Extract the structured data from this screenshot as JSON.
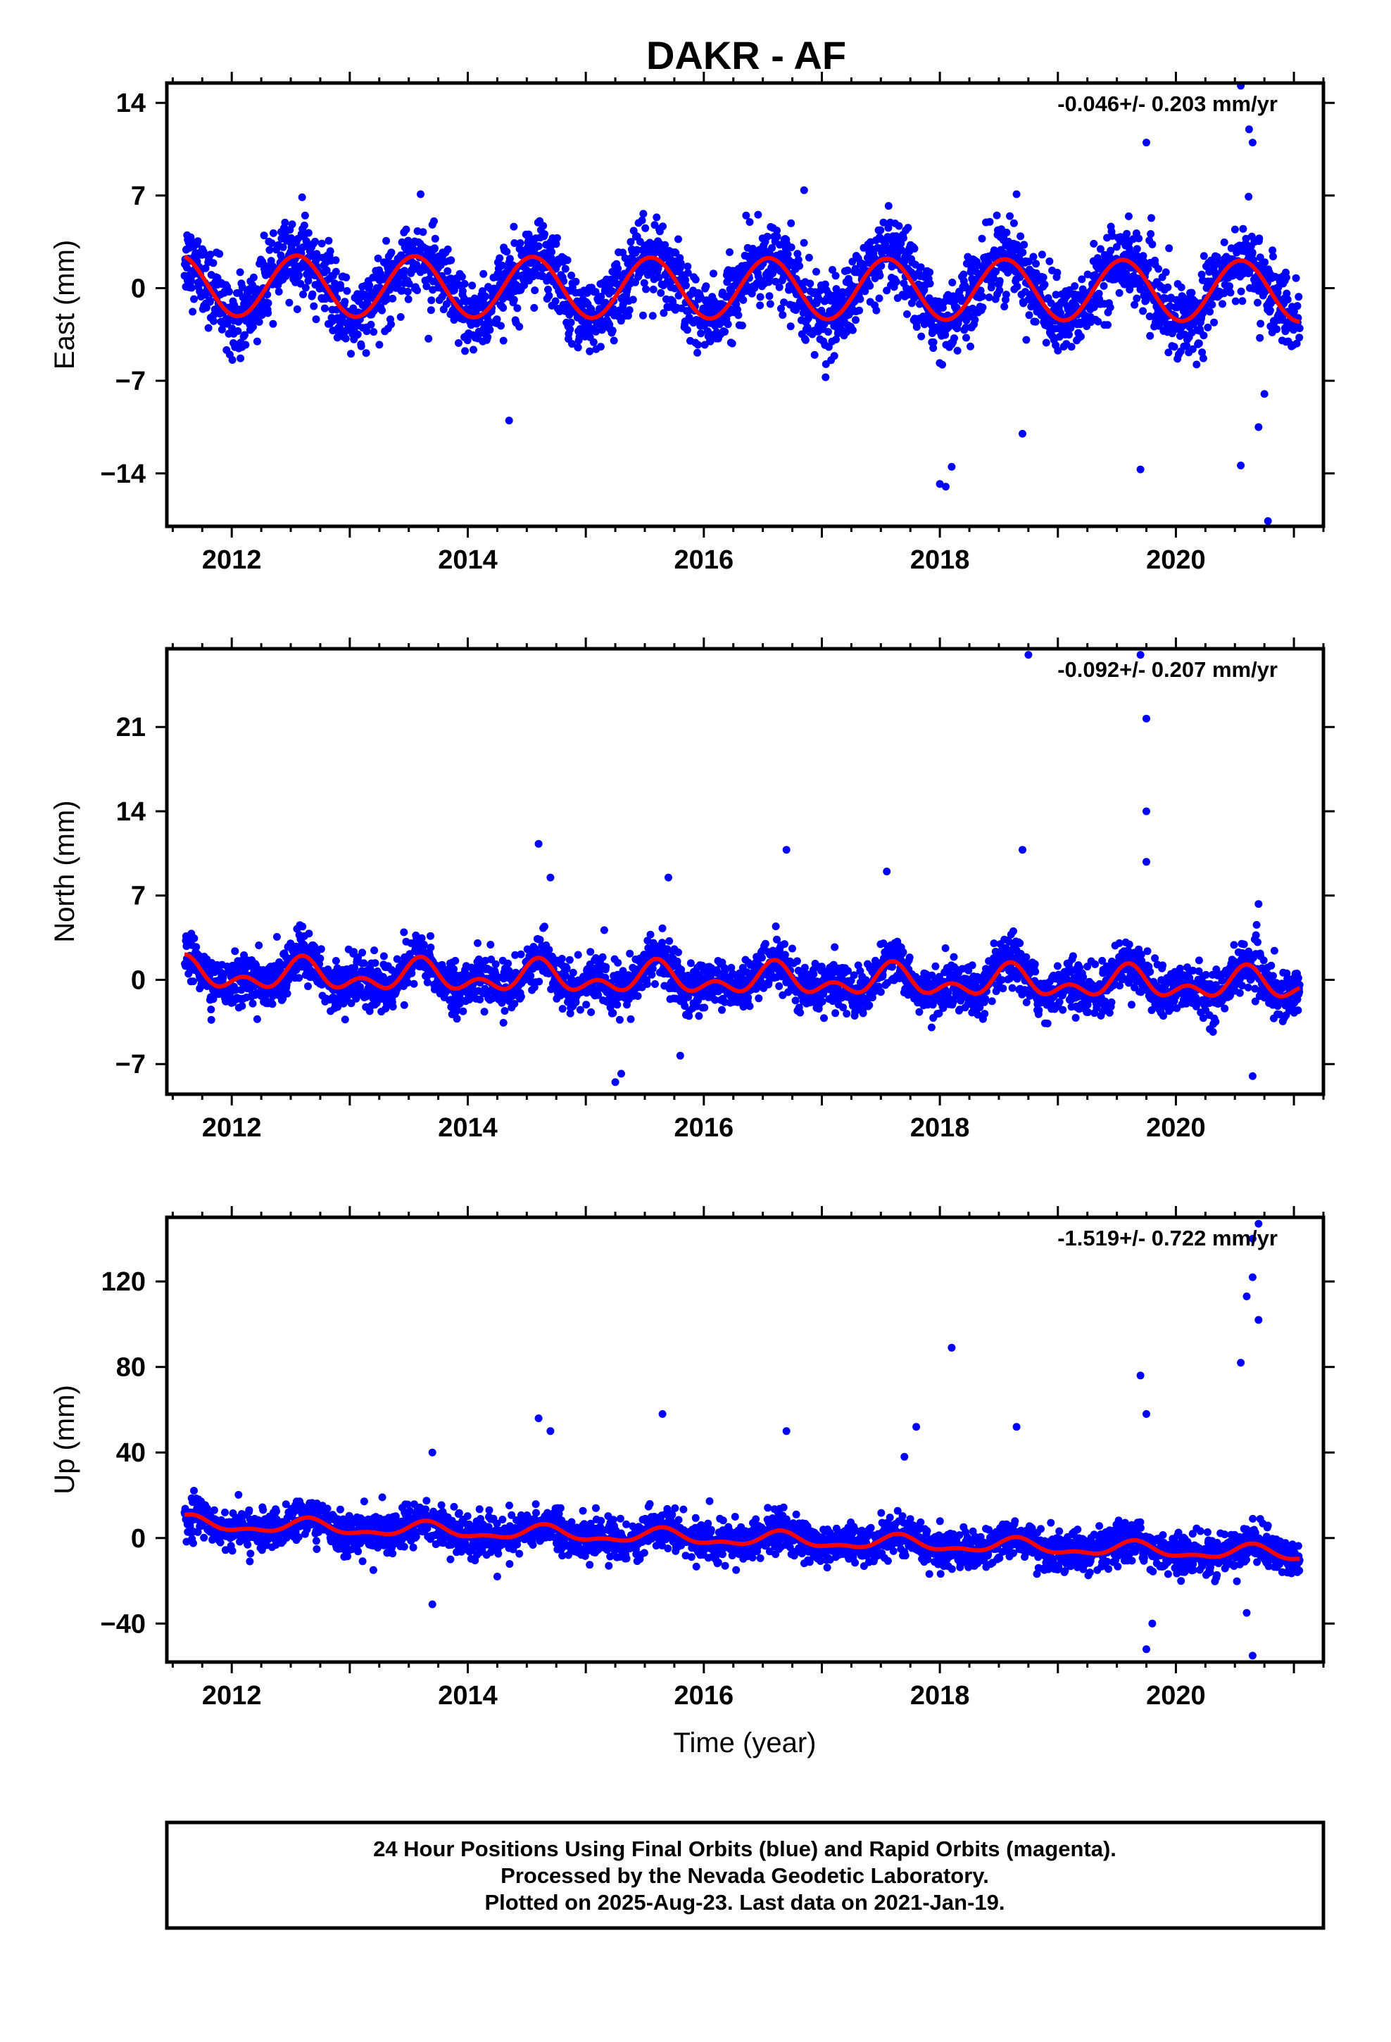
{
  "title": "DAKR - AF",
  "x_label": "Time (year)",
  "footer": {
    "line1": "24 Hour Positions Using Final Orbits (blue) and Rapid Orbits (magenta).",
    "line2": "Processed by the Nevada Geodetic Laboratory.",
    "line3": "Plotted on 2025-Aug-23. Last data on 2021-Jan-19."
  },
  "colors": {
    "final_orbits": "#0000ff",
    "fit": "#ff0000",
    "frame": "#000000"
  },
  "chart_data": [
    {
      "type": "scatter",
      "panel": "east",
      "ylabel": "East (mm)",
      "rate_text": "-0.046+/- 0.203 mm/yr",
      "xlim": [
        2011.45,
        2021.25
      ],
      "ylim": [
        -18,
        15.5
      ],
      "xticks": [
        "2012",
        "2014",
        "2016",
        "2018",
        "2020"
      ],
      "yticks": [
        "14",
        "7",
        "0",
        "−7",
        "−14"
      ],
      "ytick_values": [
        14,
        7,
        0,
        -7,
        -14
      ],
      "model": {
        "mean": 0.0,
        "trend_per_year": -0.046,
        "annual_amplitude": 2.3,
        "annual_phase_peak": 0.55,
        "semiannual_amplitude": 0.0,
        "start": 2011.6,
        "end": 2021.05
      },
      "scatter_mm": 1.4,
      "outliers": [
        [
          2014.35,
          -10
        ],
        [
          2018.0,
          -14.8
        ],
        [
          2018.05,
          -15
        ],
        [
          2018.1,
          -13.5
        ],
        [
          2018.7,
          -11
        ],
        [
          2019.7,
          -13.7
        ],
        [
          2019.75,
          11
        ],
        [
          2020.55,
          15.3
        ],
        [
          2020.55,
          -13.4
        ],
        [
          2020.62,
          12
        ],
        [
          2020.65,
          11
        ],
        [
          2020.7,
          -10.5
        ],
        [
          2020.75,
          -8
        ],
        [
          2020.78,
          -17.6
        ],
        [
          2016.85,
          7.4
        ],
        [
          2013.6,
          7.1
        ],
        [
          2018.65,
          7.1
        ]
      ]
    },
    {
      "type": "scatter",
      "panel": "north",
      "ylabel": "North (mm)",
      "rate_text": "-0.092+/- 0.207 mm/yr",
      "xlim": [
        2011.45,
        2021.25
      ],
      "ylim": [
        -9.5,
        27.5
      ],
      "xticks": [
        "2012",
        "2014",
        "2016",
        "2018",
        "2020"
      ],
      "yticks": [
        "21",
        "14",
        "7",
        "0",
        "−7"
      ],
      "ytick_values": [
        21,
        14,
        7,
        0,
        -7
      ],
      "model": {
        "mean": 0.0,
        "trend_per_year": -0.092,
        "annual_amplitude": 0.9,
        "annual_phase_peak": 0.6,
        "semiannual_amplitude": 0.8,
        "start": 2011.6,
        "end": 2021.05
      },
      "scatter_mm": 1.0,
      "outliers": [
        [
          2014.6,
          11.3
        ],
        [
          2014.7,
          8.5
        ],
        [
          2015.7,
          8.5
        ],
        [
          2015.8,
          -6.3
        ],
        [
          2016.7,
          10.8
        ],
        [
          2017.55,
          9.0
        ],
        [
          2018.7,
          10.8
        ],
        [
          2018.75,
          27.0
        ],
        [
          2019.7,
          27.0
        ],
        [
          2019.75,
          21.7
        ],
        [
          2019.75,
          14.0
        ],
        [
          2019.75,
          9.8
        ],
        [
          2020.65,
          -8.0
        ],
        [
          2020.7,
          6.3
        ],
        [
          2015.25,
          -8.5
        ],
        [
          2015.3,
          -7.8
        ]
      ]
    },
    {
      "type": "scatter",
      "panel": "up",
      "ylabel": "Up (mm)",
      "rate_text": "-1.519+/- 0.722 mm/yr",
      "xlim": [
        2011.45,
        2021.25
      ],
      "ylim": [
        -58,
        150
      ],
      "xticks": [
        "2012",
        "2014",
        "2016",
        "2018",
        "2020"
      ],
      "yticks": [
        "120",
        "80",
        "40",
        "0",
        "−40"
      ],
      "ytick_values": [
        120,
        80,
        40,
        0,
        -40
      ],
      "model": {
        "mean": 0.0,
        "trend_per_year": -1.519,
        "annual_amplitude": 3.0,
        "annual_phase_peak": 0.65,
        "semiannual_amplitude": 1.5,
        "start": 2011.6,
        "end": 2021.05
      },
      "scatter_mm": 4.5,
      "outliers": [
        [
          2013.7,
          -31
        ],
        [
          2013.7,
          40
        ],
        [
          2014.6,
          56
        ],
        [
          2014.7,
          50
        ],
        [
          2015.65,
          58
        ],
        [
          2016.7,
          50
        ],
        [
          2017.8,
          52
        ],
        [
          2018.1,
          89
        ],
        [
          2018.65,
          52
        ],
        [
          2019.7,
          76
        ],
        [
          2019.75,
          -52
        ],
        [
          2019.8,
          -40
        ],
        [
          2019.75,
          58
        ],
        [
          2020.55,
          82
        ],
        [
          2020.6,
          113
        ],
        [
          2020.65,
          140
        ],
        [
          2020.7,
          147
        ],
        [
          2020.65,
          122
        ],
        [
          2020.7,
          102
        ],
        [
          2020.65,
          -55
        ],
        [
          2020.6,
          -35
        ],
        [
          2013.2,
          -15
        ],
        [
          2017.7,
          38
        ],
        [
          2014.25,
          -18
        ]
      ]
    }
  ]
}
